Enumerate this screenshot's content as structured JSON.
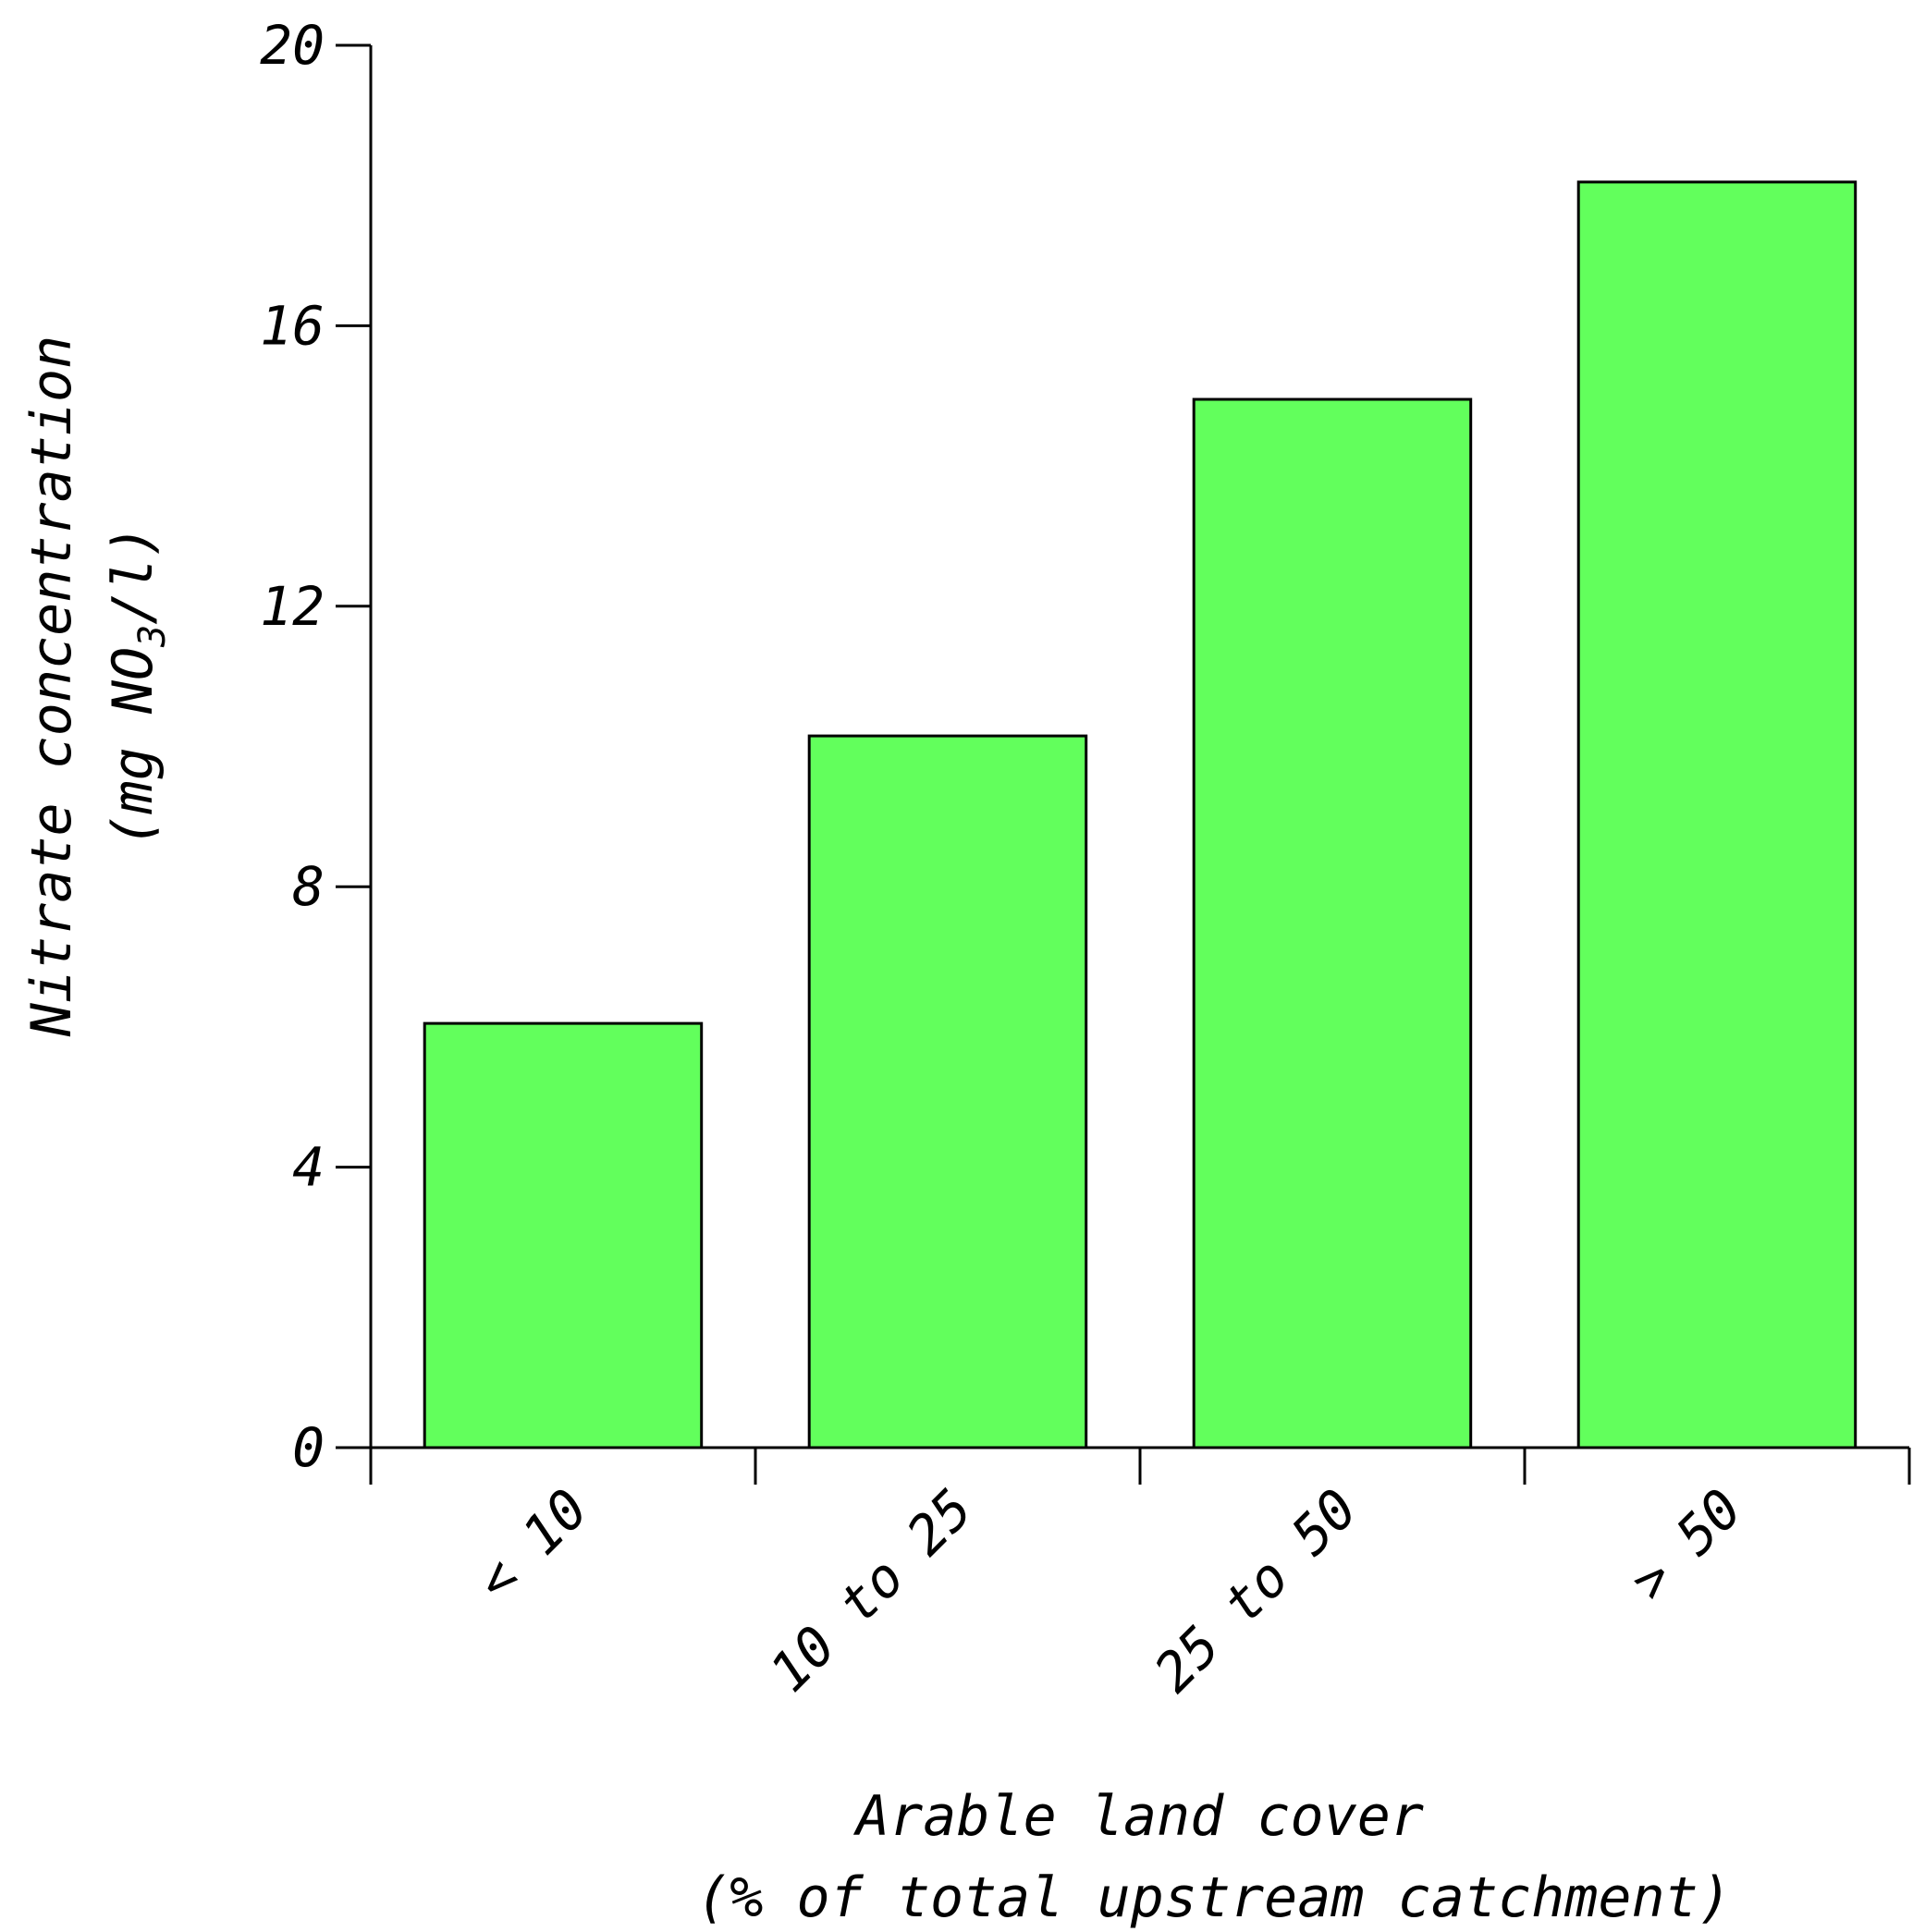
{
  "chart_data": {
    "type": "bar",
    "categories": [
      "< 10",
      "10 to 25",
      "25 to 50",
      "> 50"
    ],
    "values": [
      6.05,
      10.15,
      14.95,
      18.05
    ],
    "y_ticks": [
      "0",
      "4",
      "8",
      "12",
      "16",
      "20"
    ],
    "ylim": [
      0,
      20
    ],
    "ylabel_line1": "Nitrate concentration",
    "ylabel_line2_prefix": "(mg NO",
    "ylabel_line2_sub": "3",
    "ylabel_line2_suffix": "/l)",
    "xlabel_line1": "Arable land cover",
    "xlabel_line2": "(% of total upstream catchment)",
    "grid": false,
    "legend": "none"
  },
  "colors": {
    "bar_fill": "#62ff5c",
    "bar_stroke": "#000000",
    "axis": "#000000"
  }
}
